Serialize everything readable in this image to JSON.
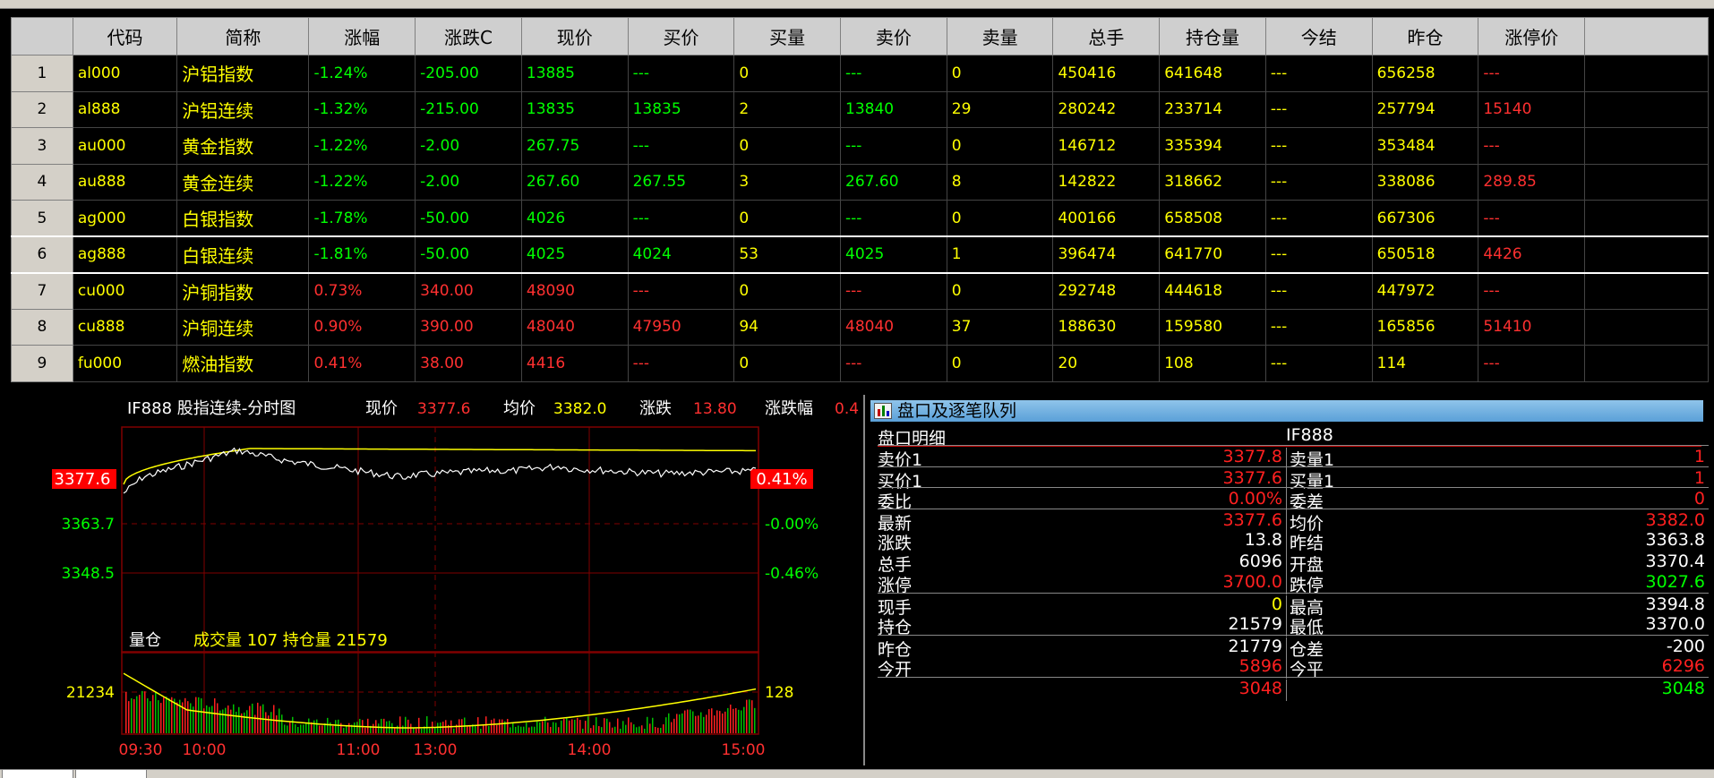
{
  "table": {
    "headers": [
      "代码",
      "简称",
      "涨幅",
      "涨跌C",
      "现价",
      "买价",
      "买量",
      "卖价",
      "卖量",
      "总手",
      "持仓量",
      "今结",
      "昨仓",
      "涨停价",
      ""
    ],
    "rows": [
      {
        "idx": "1",
        "code": "al000",
        "name": "沪铝指数",
        "pct": "-1.24%",
        "chg": "-205.00",
        "last": "13885",
        "bid": "---",
        "bidv": "0",
        "ask": "---",
        "askv": "0",
        "vol": "450416",
        "oi": "641648",
        "settle": "---",
        "prevoi": "656258",
        "limit": "---",
        "dir": "down"
      },
      {
        "idx": "2",
        "code": "al888",
        "name": "沪铝连续",
        "pct": "-1.32%",
        "chg": "-215.00",
        "last": "13835",
        "bid": "13835",
        "bidv": "2",
        "ask": "13840",
        "askv": "29",
        "vol": "280242",
        "oi": "233714",
        "settle": "---",
        "prevoi": "257794",
        "limit": "15140",
        "dir": "down"
      },
      {
        "idx": "3",
        "code": "au000",
        "name": "黄金指数",
        "pct": "-1.22%",
        "chg": "-2.00",
        "last": "267.75",
        "bid": "---",
        "bidv": "0",
        "ask": "---",
        "askv": "0",
        "vol": "146712",
        "oi": "335394",
        "settle": "---",
        "prevoi": "353484",
        "limit": "---",
        "dir": "down"
      },
      {
        "idx": "4",
        "code": "au888",
        "name": "黄金连续",
        "pct": "-1.22%",
        "chg": "-2.00",
        "last": "267.60",
        "bid": "267.55",
        "bidv": "3",
        "ask": "267.60",
        "askv": "8",
        "vol": "142822",
        "oi": "318662",
        "settle": "---",
        "prevoi": "338086",
        "limit": "289.85",
        "dir": "down"
      },
      {
        "idx": "5",
        "code": "ag000",
        "name": "白银指数",
        "pct": "-1.78%",
        "chg": "-50.00",
        "last": "4026",
        "bid": "---",
        "bidv": "0",
        "ask": "---",
        "askv": "0",
        "vol": "400166",
        "oi": "658508",
        "settle": "---",
        "prevoi": "667306",
        "limit": "---",
        "dir": "down"
      },
      {
        "idx": "6",
        "code": "ag888",
        "name": "白银连续",
        "pct": "-1.81%",
        "chg": "-50.00",
        "last": "4025",
        "bid": "4024",
        "bidv": "53",
        "ask": "4025",
        "askv": "1",
        "vol": "396474",
        "oi": "641770",
        "settle": "---",
        "prevoi": "650518",
        "limit": "4426",
        "dir": "down",
        "selected": true
      },
      {
        "idx": "7",
        "code": "cu000",
        "name": "沪铜指数",
        "pct": "0.73%",
        "chg": "340.00",
        "last": "48090",
        "bid": "---",
        "bidv": "0",
        "ask": "---",
        "askv": "0",
        "vol": "292748",
        "oi": "444618",
        "settle": "---",
        "prevoi": "447972",
        "limit": "---",
        "dir": "up"
      },
      {
        "idx": "8",
        "code": "cu888",
        "name": "沪铜连续",
        "pct": "0.90%",
        "chg": "390.00",
        "last": "48040",
        "bid": "47950",
        "bidv": "94",
        "ask": "48040",
        "askv": "37",
        "vol": "188630",
        "oi": "159580",
        "settle": "---",
        "prevoi": "165856",
        "limit": "51410",
        "dir": "up"
      },
      {
        "idx": "9",
        "code": "fu000",
        "name": "燃油指数",
        "pct": "0.41%",
        "chg": "38.00",
        "last": "4416",
        "bid": "---",
        "bidv": "0",
        "ask": "---",
        "askv": "0",
        "vol": "20",
        "oi": "108",
        "settle": "---",
        "prevoi": "114",
        "limit": "---",
        "dir": "up"
      }
    ]
  },
  "chart": {
    "title": "IF888 股指连续-分时图",
    "last_label": "现价",
    "last_value": "3377.6",
    "avg_label": "均价",
    "avg_value": "3382.0",
    "chg_label": "涨跌",
    "chg_value": "13.80",
    "pct_label": "涨跌幅",
    "pct_value": "0.4",
    "y_left": [
      "3377.6",
      "3363.7",
      "3348.5"
    ],
    "y_right": [
      "0.41%",
      "-0.00%",
      "-0.46%"
    ],
    "vol_title": "量仓",
    "vol_text": "成交量 107 持仓量 21579",
    "vol_left": "21234",
    "vol_right": "128",
    "times": [
      "09:30",
      "10:00",
      "11:00",
      "13:00",
      "14:00",
      "15:00"
    ],
    "colors": {
      "price": "#ffffff",
      "avg": "#ffff00",
      "frame": "#800000",
      "up": "#ff2020",
      "down": "#00c000"
    }
  },
  "chart_data": {
    "type": "line",
    "title": "IF888 股指连续-分时图",
    "x": [
      "09:30",
      "10:00",
      "11:00",
      "13:00",
      "14:00",
      "15:00"
    ],
    "series": [],
    "yaxis_left": [
      3377.6,
      3363.7,
      3348.5
    ],
    "yaxis_right": [
      "0.41%",
      "-0.00%",
      "-0.46%"
    ],
    "grid": true
  },
  "order": {
    "title": "盘口及逐笔队列",
    "head_label": "盘口明细",
    "code": "IF888",
    "rows": [
      {
        "l1": "卖价1",
        "v1": "3377.8",
        "c1": "red",
        "l2": "卖量1",
        "v2": "1",
        "c2": "red",
        "bt": true
      },
      {
        "l1": "买价1",
        "v1": "3377.6",
        "c1": "red",
        "l2": "买量1",
        "v2": "1",
        "c2": "red",
        "bt": true
      },
      {
        "l1": "委比",
        "v1": "0.00%",
        "c1": "red",
        "l2": "委差",
        "v2": "0",
        "c2": "red",
        "bt": true
      },
      {
        "l1": "最新",
        "v1": "3377.6",
        "c1": "red",
        "l2": "均价",
        "v2": "3382.0",
        "c2": "red",
        "bt": true
      },
      {
        "l1": "涨跌",
        "v1": "13.8",
        "c1": "white",
        "l2": "昨结",
        "v2": "3363.8",
        "c2": "white",
        "bt": false
      },
      {
        "l1": "总手",
        "v1": "6096",
        "c1": "white",
        "l2": "开盘",
        "v2": "3370.4",
        "c2": "white",
        "bt": false
      },
      {
        "l1": "涨停",
        "v1": "3700.0",
        "c1": "red",
        "l2": "跌停",
        "v2": "3027.6",
        "c2": "green",
        "bt": false
      },
      {
        "l1": "现手",
        "v1": "0",
        "c1": "yellow",
        "l2": "最高",
        "v2": "3394.8",
        "c2": "white",
        "bt": true
      },
      {
        "l1": "持仓",
        "v1": "21579",
        "c1": "white",
        "l2": "最低",
        "v2": "3370.0",
        "c2": "white",
        "bt": false
      },
      {
        "l1": "昨仓",
        "v1": "21779",
        "c1": "white",
        "l2": "仓差",
        "v2": "-200",
        "c2": "white",
        "bt": true
      },
      {
        "l1": "今开",
        "v1": "5896",
        "c1": "red",
        "l2": "今平",
        "v2": "6296",
        "c2": "red",
        "bt": false
      },
      {
        "l1": "",
        "v1": "3048",
        "c1": "red",
        "l2": "",
        "v2": "3048",
        "c2": "green",
        "bt": true
      }
    ]
  }
}
